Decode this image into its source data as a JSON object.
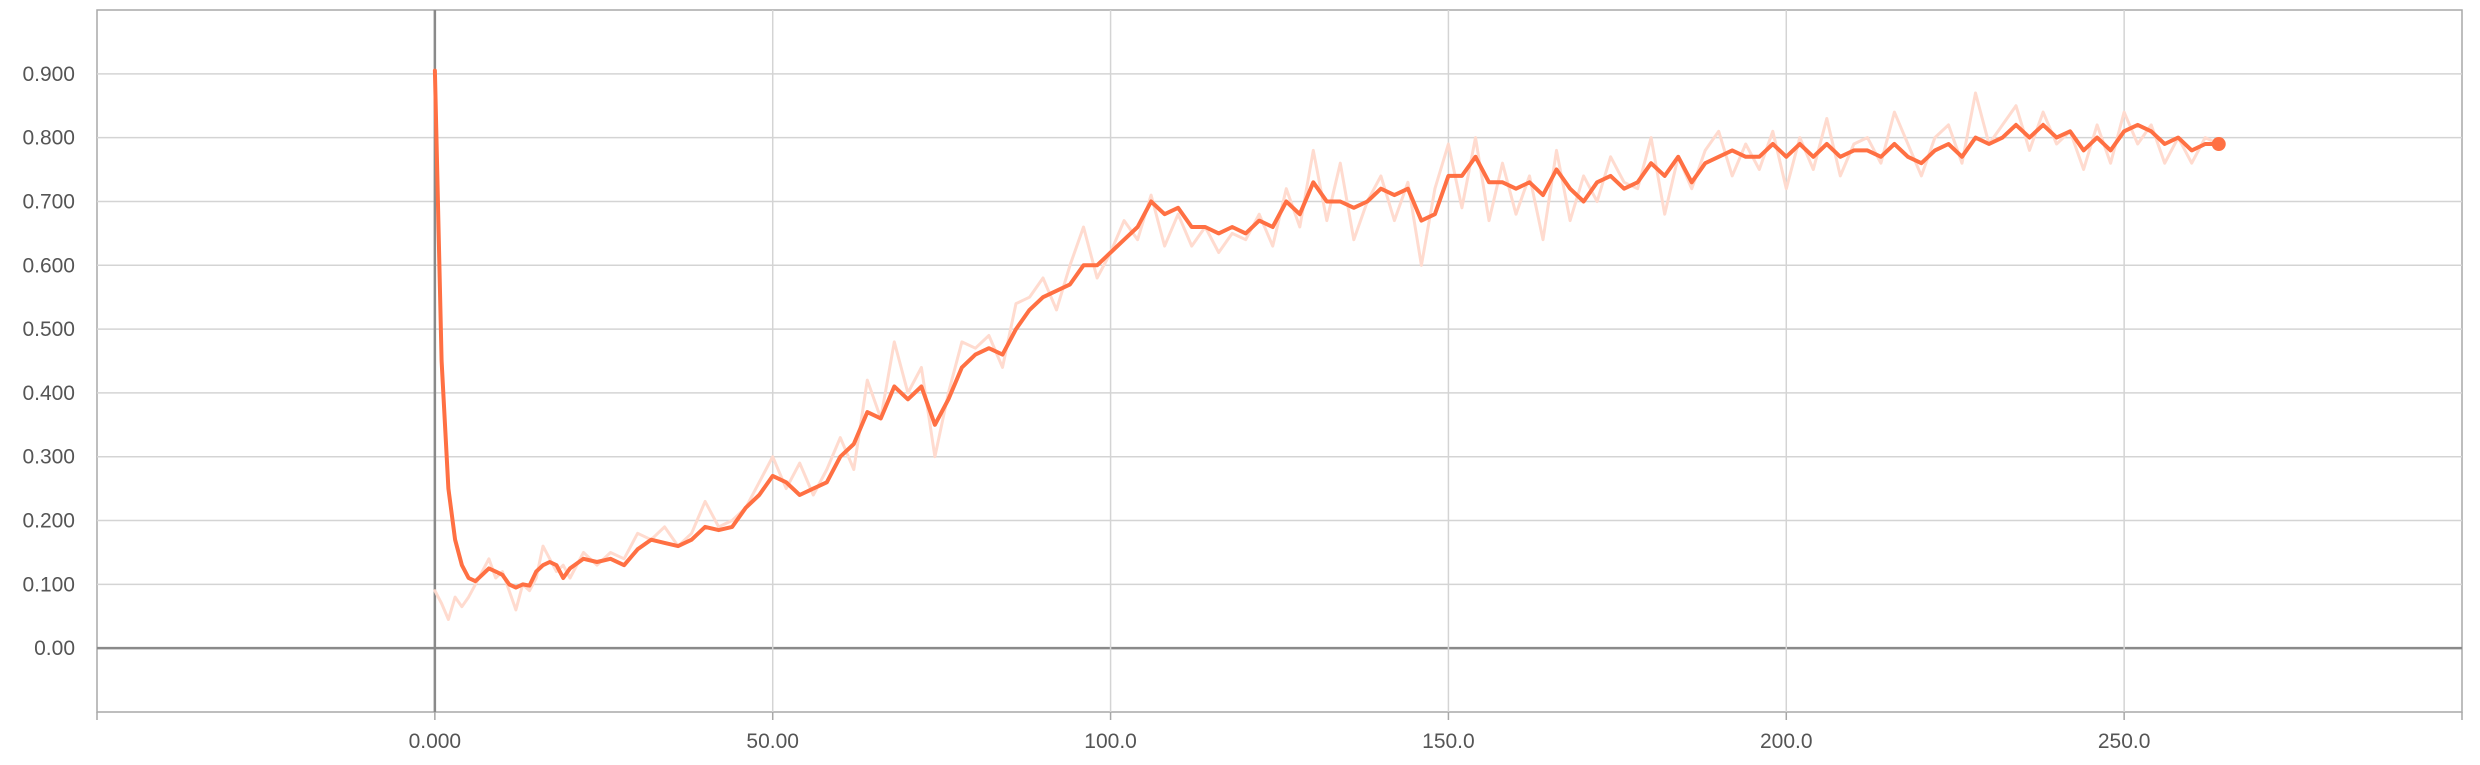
{
  "colors": {
    "series_main": "#ff7043",
    "series_raw": "#ffd9cc",
    "grid": "#d4d4d4",
    "axis": "#8a8a8a",
    "tick_text": "#555555",
    "background": "#ffffff"
  },
  "chart_data": {
    "type": "line",
    "title": "",
    "xlabel": "",
    "ylabel": "",
    "xlim": [
      -50,
      300
    ],
    "ylim": [
      -0.1,
      1.0
    ],
    "grid": true,
    "legend": "none",
    "x_ticks": [
      {
        "value": 0,
        "label": "0.000"
      },
      {
        "value": 50,
        "label": "50.00"
      },
      {
        "value": 100,
        "label": "100.0"
      },
      {
        "value": 150,
        "label": "150.0"
      },
      {
        "value": 200,
        "label": "200.0"
      },
      {
        "value": 250,
        "label": "250.0"
      }
    ],
    "y_ticks": [
      {
        "value": 0.0,
        "label": "0.00"
      },
      {
        "value": 0.1,
        "label": "0.100"
      },
      {
        "value": 0.2,
        "label": "0.200"
      },
      {
        "value": 0.3,
        "label": "0.300"
      },
      {
        "value": 0.4,
        "label": "0.400"
      },
      {
        "value": 0.5,
        "label": "0.500"
      },
      {
        "value": 0.6,
        "label": "0.600"
      },
      {
        "value": 0.7,
        "label": "0.700"
      },
      {
        "value": 0.8,
        "label": "0.800"
      },
      {
        "value": 0.9,
        "label": "0.900"
      }
    ],
    "series": [
      {
        "style": "raw-faded",
        "x": [
          0,
          1,
          2,
          3,
          4,
          5,
          6,
          7,
          8,
          9,
          10,
          11,
          12,
          13,
          14,
          15,
          16,
          17,
          18,
          19,
          20,
          22,
          24,
          26,
          28,
          30,
          32,
          34,
          36,
          38,
          40,
          42,
          44,
          46,
          48,
          50,
          52,
          54,
          56,
          58,
          60,
          62,
          64,
          66,
          68,
          70,
          72,
          74,
          76,
          78,
          80,
          82,
          84,
          86,
          88,
          90,
          92,
          94,
          96,
          98,
          100,
          102,
          104,
          106,
          108,
          110,
          112,
          114,
          116,
          118,
          120,
          122,
          124,
          126,
          128,
          130,
          132,
          134,
          136,
          138,
          140,
          142,
          144,
          146,
          148,
          150,
          152,
          154,
          156,
          158,
          160,
          162,
          164,
          166,
          168,
          170,
          172,
          174,
          176,
          178,
          180,
          182,
          184,
          186,
          188,
          190,
          192,
          194,
          196,
          198,
          200,
          202,
          204,
          206,
          208,
          210,
          212,
          214,
          216,
          218,
          220,
          222,
          224,
          226,
          228,
          230,
          232,
          234,
          236,
          238,
          240,
          242,
          244,
          246,
          248,
          250,
          252,
          254,
          256,
          258,
          260,
          262,
          264
        ],
        "y": [
          0.09,
          0.07,
          0.045,
          0.08,
          0.065,
          0.08,
          0.1,
          0.12,
          0.14,
          0.11,
          0.12,
          0.09,
          0.06,
          0.1,
          0.09,
          0.11,
          0.16,
          0.14,
          0.12,
          0.13,
          0.11,
          0.15,
          0.13,
          0.15,
          0.14,
          0.18,
          0.17,
          0.19,
          0.16,
          0.18,
          0.23,
          0.19,
          0.2,
          0.22,
          0.26,
          0.3,
          0.25,
          0.29,
          0.24,
          0.28,
          0.33,
          0.28,
          0.42,
          0.36,
          0.48,
          0.4,
          0.44,
          0.3,
          0.4,
          0.48,
          0.47,
          0.49,
          0.44,
          0.54,
          0.55,
          0.58,
          0.53,
          0.6,
          0.66,
          0.58,
          0.62,
          0.67,
          0.64,
          0.71,
          0.63,
          0.68,
          0.63,
          0.66,
          0.62,
          0.65,
          0.64,
          0.68,
          0.63,
          0.72,
          0.66,
          0.78,
          0.67,
          0.76,
          0.64,
          0.7,
          0.74,
          0.67,
          0.73,
          0.6,
          0.72,
          0.79,
          0.69,
          0.8,
          0.67,
          0.76,
          0.68,
          0.74,
          0.64,
          0.78,
          0.67,
          0.74,
          0.7,
          0.77,
          0.73,
          0.72,
          0.8,
          0.68,
          0.77,
          0.72,
          0.78,
          0.81,
          0.74,
          0.79,
          0.75,
          0.81,
          0.72,
          0.8,
          0.75,
          0.83,
          0.74,
          0.79,
          0.8,
          0.76,
          0.84,
          0.79,
          0.74,
          0.8,
          0.82,
          0.76,
          0.87,
          0.79,
          0.82,
          0.85,
          0.78,
          0.84,
          0.79,
          0.81,
          0.75,
          0.82,
          0.76,
          0.84,
          0.79,
          0.82,
          0.76,
          0.8,
          0.76,
          0.8,
          0.79
        ]
      },
      {
        "style": "smoothed",
        "x": [
          0,
          1,
          2,
          3,
          4,
          5,
          6,
          7,
          8,
          9,
          10,
          11,
          12,
          13,
          14,
          15,
          16,
          17,
          18,
          19,
          20,
          22,
          24,
          26,
          28,
          30,
          32,
          34,
          36,
          38,
          40,
          42,
          44,
          46,
          48,
          50,
          52,
          54,
          56,
          58,
          60,
          62,
          64,
          66,
          68,
          70,
          72,
          74,
          76,
          78,
          80,
          82,
          84,
          86,
          88,
          90,
          92,
          94,
          96,
          98,
          100,
          102,
          104,
          106,
          108,
          110,
          112,
          114,
          116,
          118,
          120,
          122,
          124,
          126,
          128,
          130,
          132,
          134,
          136,
          138,
          140,
          142,
          144,
          146,
          148,
          150,
          152,
          154,
          156,
          158,
          160,
          162,
          164,
          166,
          168,
          170,
          172,
          174,
          176,
          178,
          180,
          182,
          184,
          186,
          188,
          190,
          192,
          194,
          196,
          198,
          200,
          202,
          204,
          206,
          208,
          210,
          212,
          214,
          216,
          218,
          220,
          222,
          224,
          226,
          228,
          230,
          232,
          234,
          236,
          238,
          240,
          242,
          244,
          246,
          248,
          250,
          252,
          254,
          256,
          258,
          260,
          262,
          264
        ],
        "y": [
          0.905,
          0.45,
          0.25,
          0.17,
          0.13,
          0.11,
          0.105,
          0.115,
          0.125,
          0.12,
          0.115,
          0.1,
          0.095,
          0.1,
          0.098,
          0.12,
          0.13,
          0.135,
          0.13,
          0.11,
          0.125,
          0.14,
          0.135,
          0.14,
          0.13,
          0.155,
          0.17,
          0.165,
          0.16,
          0.17,
          0.19,
          0.185,
          0.19,
          0.22,
          0.24,
          0.27,
          0.26,
          0.24,
          0.25,
          0.26,
          0.3,
          0.32,
          0.37,
          0.36,
          0.41,
          0.39,
          0.41,
          0.35,
          0.39,
          0.44,
          0.46,
          0.47,
          0.46,
          0.5,
          0.53,
          0.55,
          0.56,
          0.57,
          0.6,
          0.6,
          0.62,
          0.64,
          0.66,
          0.7,
          0.68,
          0.69,
          0.66,
          0.66,
          0.65,
          0.66,
          0.65,
          0.67,
          0.66,
          0.7,
          0.68,
          0.73,
          0.7,
          0.7,
          0.69,
          0.7,
          0.72,
          0.71,
          0.72,
          0.67,
          0.68,
          0.74,
          0.74,
          0.77,
          0.73,
          0.73,
          0.72,
          0.73,
          0.71,
          0.75,
          0.72,
          0.7,
          0.73,
          0.74,
          0.72,
          0.73,
          0.76,
          0.74,
          0.77,
          0.73,
          0.76,
          0.77,
          0.78,
          0.77,
          0.77,
          0.79,
          0.77,
          0.79,
          0.77,
          0.79,
          0.77,
          0.78,
          0.78,
          0.77,
          0.79,
          0.77,
          0.76,
          0.78,
          0.79,
          0.77,
          0.8,
          0.79,
          0.8,
          0.82,
          0.8,
          0.82,
          0.8,
          0.81,
          0.78,
          0.8,
          0.78,
          0.81,
          0.82,
          0.81,
          0.79,
          0.8,
          0.78,
          0.79,
          0.79
        ]
      }
    ]
  }
}
